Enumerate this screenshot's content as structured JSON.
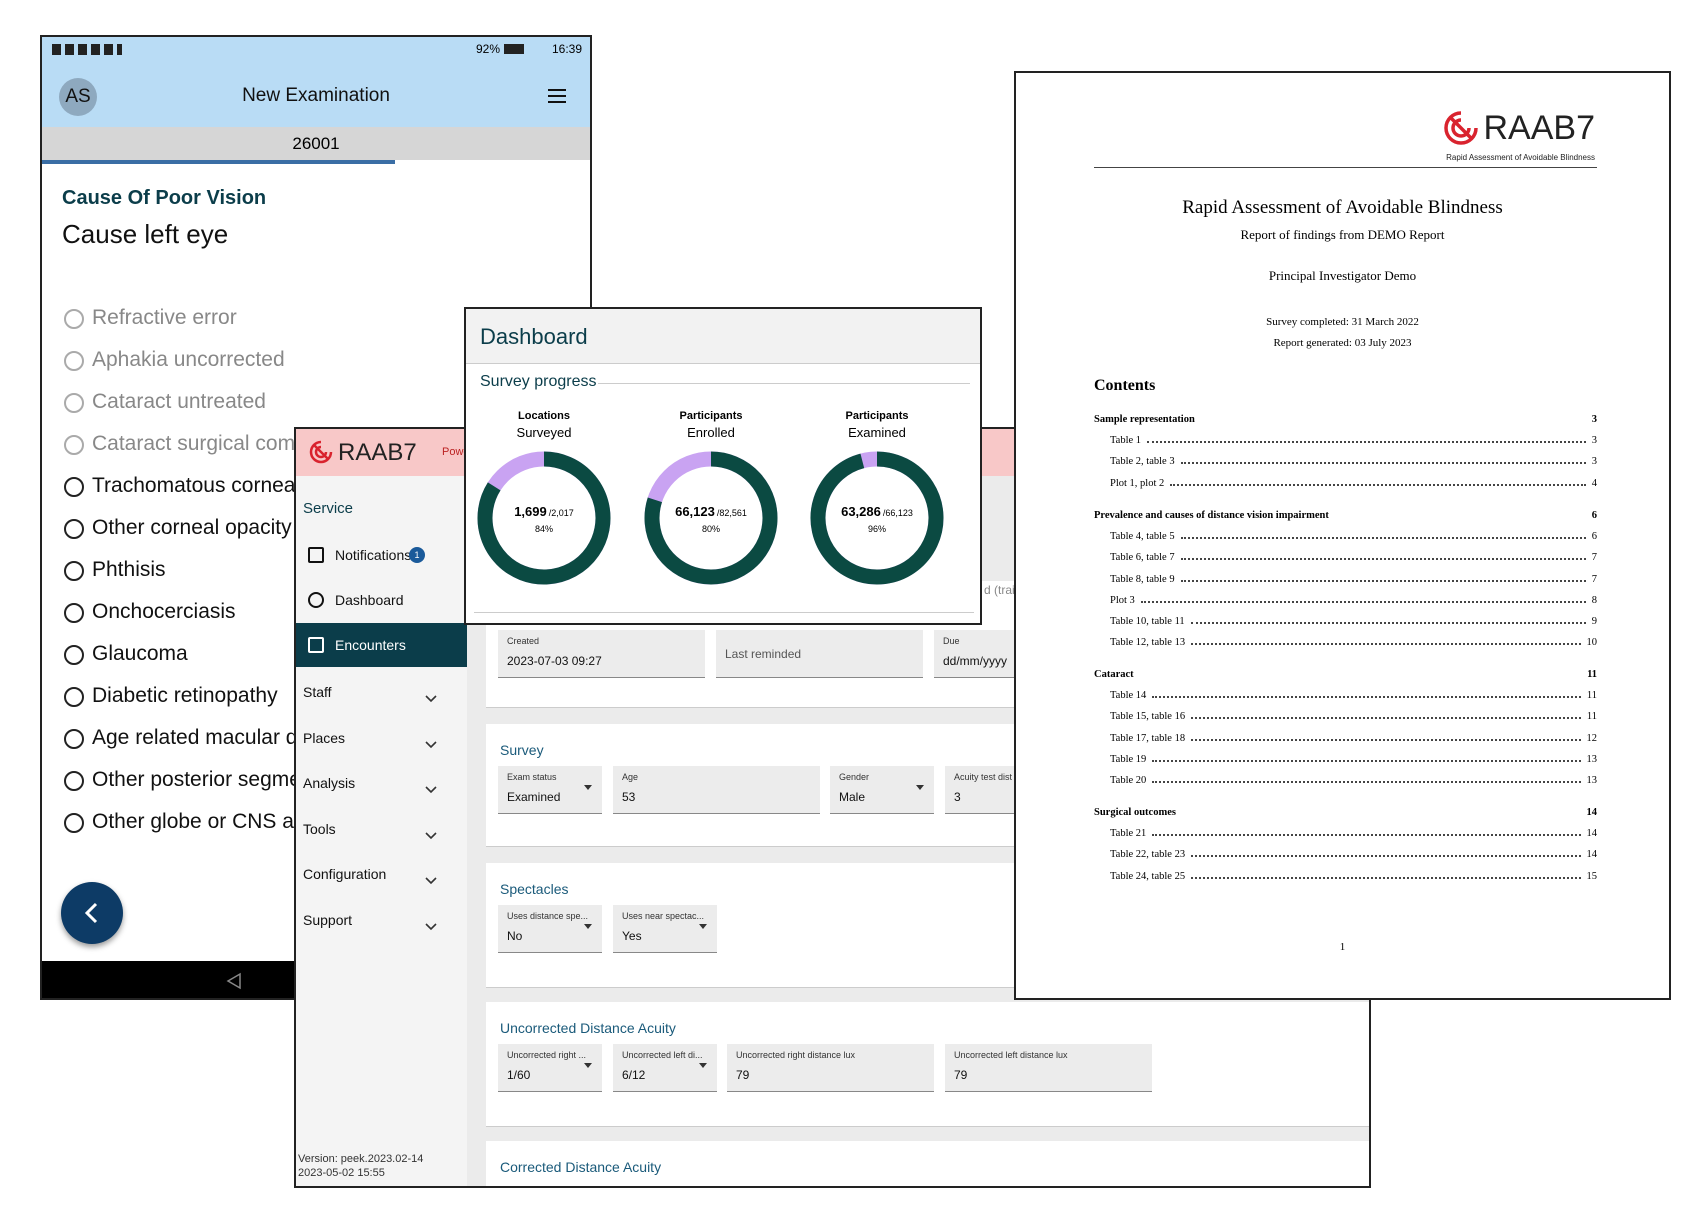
{
  "phone": {
    "status_battery": "92%",
    "status_time": "16:39",
    "avatar": "AS",
    "title": "New Examination",
    "record_id": "26001",
    "section": "Cause Of Poor Vision",
    "question": "Cause left eye",
    "options": [
      {
        "label": "Refractive error",
        "enabled": false
      },
      {
        "label": "Aphakia uncorrected",
        "enabled": false
      },
      {
        "label": "Cataract untreated",
        "enabled": false
      },
      {
        "label": "Cataract surgical com",
        "enabled": false
      },
      {
        "label": "Trachomatous cornea",
        "enabled": true
      },
      {
        "label": "Other corneal opacity",
        "enabled": true
      },
      {
        "label": "Phthisis",
        "enabled": true
      },
      {
        "label": "Onchocerciasis",
        "enabled": true
      },
      {
        "label": "Glaucoma",
        "enabled": true
      },
      {
        "label": "Diabetic retinopathy",
        "enabled": true
      },
      {
        "label": "Age related macular d",
        "enabled": true
      },
      {
        "label": "Other posterior segme",
        "enabled": true
      },
      {
        "label": "Other globe or CNS ab",
        "enabled": true
      }
    ]
  },
  "webapp": {
    "logo": "RAAB7",
    "header_tag": "Powe",
    "sidebar": {
      "section": "Service",
      "items": [
        {
          "label": "Notifications",
          "badge": "1"
        },
        {
          "label": "Dashboard"
        },
        {
          "label": "Encounters",
          "selected": true
        }
      ],
      "menus": [
        "Staff",
        "Places",
        "Analysis",
        "Tools",
        "Configuration",
        "Support"
      ],
      "version": "Version: peek.2023.02-14",
      "version_date": "2023-05-02 15:55"
    },
    "fragment": "d (trai",
    "record": {
      "fields": [
        {
          "label": "Created",
          "value": "2023-07-03 09:27"
        },
        {
          "label": "Last reminded"
        },
        {
          "label": "Due",
          "value": "dd/mm/yyyy"
        }
      ]
    },
    "cards": [
      {
        "title": "Survey",
        "fields": [
          {
            "label": "Exam status",
            "value": "Examined",
            "dropdown": true
          },
          {
            "label": "Age",
            "value": "53"
          },
          {
            "label": "Gender",
            "value": "Male",
            "dropdown": true
          },
          {
            "label": "Acuity test dist",
            "value": "3"
          }
        ]
      },
      {
        "title": "Spectacles",
        "fields": [
          {
            "label": "Uses distance spe...",
            "value": "No",
            "dropdown": true
          },
          {
            "label": "Uses near spectac...",
            "value": "Yes",
            "dropdown": true
          }
        ]
      },
      {
        "title": "Uncorrected Distance Acuity",
        "fields": [
          {
            "label": "Uncorrected right ...",
            "value": "1/60",
            "dropdown": true
          },
          {
            "label": "Uncorrected left di...",
            "value": "6/12",
            "dropdown": true
          },
          {
            "label": "Uncorrected right distance lux",
            "value": "79"
          },
          {
            "label": "Uncorrected left distance lux",
            "value": "79"
          }
        ]
      },
      {
        "title": "Corrected Distance Acuity",
        "fields": []
      }
    ]
  },
  "dashboard": {
    "title": "Dashboard",
    "section": "Survey progress",
    "donuts": [
      {
        "label_top": "Locations",
        "label": "Surveyed",
        "count": "1,699",
        "total": "/2,017",
        "percent": 84,
        "percent_label": "84%"
      },
      {
        "label_top": "Participants",
        "label": "Enrolled",
        "count": "66,123",
        "total": "/82,561",
        "percent": 80,
        "percent_label": "80%"
      },
      {
        "label_top": "Participants",
        "label": "Examined",
        "count": "63,286",
        "total": "/66,123",
        "percent": 96,
        "percent_label": "96%"
      }
    ]
  },
  "report": {
    "logo": "RAAB7",
    "tagline": "Rapid Assessment of Avoidable Blindness",
    "title": "Rapid Assessment of Avoidable Blindness",
    "subtitle": "Report of findings from DEMO Report",
    "investigator": "Principal Investigator Demo",
    "survey_completed": "Survey completed: 31 March 2022",
    "generated": "Report generated: 03 July 2023",
    "contents_heading": "Contents",
    "sections": [
      {
        "name": "Sample representation",
        "page": "3",
        "entries": [
          {
            "label": "Table 1",
            "page": "3"
          },
          {
            "label": "Table 2, table 3",
            "page": "3"
          },
          {
            "label": "Plot 1, plot 2",
            "page": "4"
          }
        ]
      },
      {
        "name": "Prevalence and causes of distance vision impairment",
        "page": "6",
        "entries": [
          {
            "label": "Table 4, table 5",
            "page": "6"
          },
          {
            "label": "Table 6, table 7",
            "page": "7"
          },
          {
            "label": "Table 8, table 9",
            "page": "7"
          },
          {
            "label": "Plot 3",
            "page": "8"
          },
          {
            "label": "Table 10, table 11",
            "page": "9"
          },
          {
            "label": "Table 12, table 13",
            "page": "10"
          }
        ]
      },
      {
        "name": "Cataract",
        "page": "11",
        "entries": [
          {
            "label": "Table 14",
            "page": "11"
          },
          {
            "label": "Table 15, table 16",
            "page": "11"
          },
          {
            "label": "Table 17, table 18",
            "page": "12"
          },
          {
            "label": "Table 19",
            "page": "13"
          },
          {
            "label": "Table 20",
            "page": "13"
          }
        ]
      },
      {
        "name": "Surgical outcomes",
        "page": "14",
        "entries": [
          {
            "label": "Table 21",
            "page": "14"
          },
          {
            "label": "Table 22, table 23",
            "page": "14"
          },
          {
            "label": "Table 24, table 25",
            "page": "15"
          }
        ]
      }
    ],
    "page_number": "1"
  }
}
